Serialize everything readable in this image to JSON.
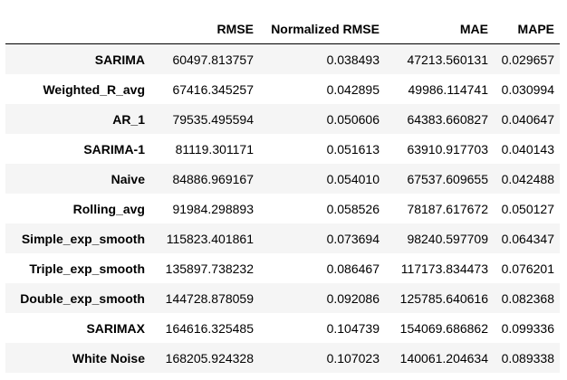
{
  "table": {
    "columns": [
      "",
      "RMSE",
      "Normalized RMSE",
      "MAE",
      "MAPE"
    ],
    "rows": [
      {
        "name": "SARIMA",
        "rmse": "60497.813757",
        "nrmse": "0.038493",
        "mae": "47213.560131",
        "mape": "0.029657"
      },
      {
        "name": "Weighted_R_avg",
        "rmse": "67416.345257",
        "nrmse": "0.042895",
        "mae": "49986.114741",
        "mape": "0.030994"
      },
      {
        "name": "AR_1",
        "rmse": "79535.495594",
        "nrmse": "0.050606",
        "mae": "64383.660827",
        "mape": "0.040647"
      },
      {
        "name": "SARIMA-1",
        "rmse": "81119.301171",
        "nrmse": "0.051613",
        "mae": "63910.917703",
        "mape": "0.040143"
      },
      {
        "name": "Naive",
        "rmse": "84886.969167",
        "nrmse": "0.054010",
        "mae": "67537.609655",
        "mape": "0.042488"
      },
      {
        "name": "Rolling_avg",
        "rmse": "91984.298893",
        "nrmse": "0.058526",
        "mae": "78187.617672",
        "mape": "0.050127"
      },
      {
        "name": "Simple_exp_smooth",
        "rmse": "115823.401861",
        "nrmse": "0.073694",
        "mae": "98240.597709",
        "mape": "0.064347"
      },
      {
        "name": "Triple_exp_smooth",
        "rmse": "135897.738232",
        "nrmse": "0.086467",
        "mae": "117173.834473",
        "mape": "0.076201"
      },
      {
        "name": "Double_exp_smooth",
        "rmse": "144728.878059",
        "nrmse": "0.092086",
        "mae": "125785.640616",
        "mape": "0.082368"
      },
      {
        "name": "SARIMAX",
        "rmse": "164616.325485",
        "nrmse": "0.104739",
        "mae": "154069.686862",
        "mape": "0.099336"
      },
      {
        "name": "White Noise",
        "rmse": "168205.924328",
        "nrmse": "0.107023",
        "mae": "140061.204634",
        "mape": "0.089338"
      }
    ]
  }
}
